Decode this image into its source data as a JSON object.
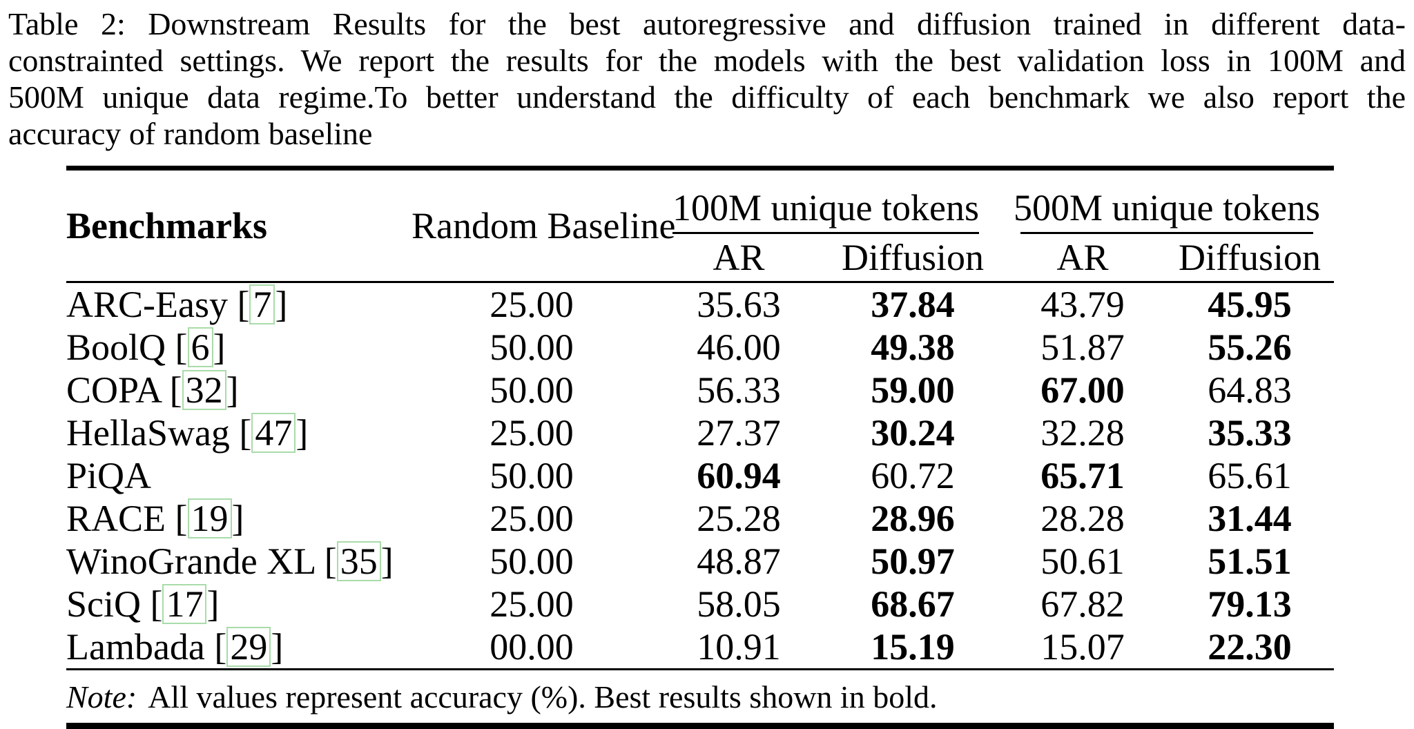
{
  "caption": {
    "lines": [
      "Table 2: Downstream Results for the best autoregressive and diffusion trained in different data-",
      "constrainted settings. We report the results for the models with the best validation loss in 100M and",
      "500M unique data regime.To better understand the difficulty of each benchmark we also report the",
      "accuracy of random baseline"
    ]
  },
  "table": {
    "col_headers": {
      "benchmarks": "Benchmarks",
      "random_baseline": "Random Baseline",
      "group_100m": "100M unique tokens",
      "group_500m": "500M unique tokens",
      "ar": "AR",
      "diffusion": "Diffusion"
    },
    "rows": [
      {
        "name": "ARC-Easy",
        "cite": "7",
        "random": "25.00",
        "values": [
          {
            "v": "35.63",
            "b": false
          },
          {
            "v": "37.84",
            "b": true
          },
          {
            "v": "43.79",
            "b": false
          },
          {
            "v": "45.95",
            "b": true
          }
        ]
      },
      {
        "name": "BoolQ",
        "cite": "6",
        "random": "50.00",
        "values": [
          {
            "v": "46.00",
            "b": false
          },
          {
            "v": "49.38",
            "b": true
          },
          {
            "v": "51.87",
            "b": false
          },
          {
            "v": "55.26",
            "b": true
          }
        ]
      },
      {
        "name": "COPA",
        "cite": "32",
        "random": "50.00",
        "values": [
          {
            "v": "56.33",
            "b": false
          },
          {
            "v": "59.00",
            "b": true
          },
          {
            "v": "67.00",
            "b": true
          },
          {
            "v": "64.83",
            "b": false
          }
        ]
      },
      {
        "name": "HellaSwag",
        "cite": "47",
        "random": "25.00",
        "values": [
          {
            "v": "27.37",
            "b": false
          },
          {
            "v": "30.24",
            "b": true
          },
          {
            "v": "32.28",
            "b": false
          },
          {
            "v": "35.33",
            "b": true
          }
        ]
      },
      {
        "name": "PiQA",
        "cite": null,
        "random": "50.00",
        "values": [
          {
            "v": "60.94",
            "b": true
          },
          {
            "v": "60.72",
            "b": false
          },
          {
            "v": "65.71",
            "b": true
          },
          {
            "v": "65.61",
            "b": false
          }
        ]
      },
      {
        "name": "RACE",
        "cite": "19",
        "random": "25.00",
        "values": [
          {
            "v": "25.28",
            "b": false
          },
          {
            "v": "28.96",
            "b": true
          },
          {
            "v": "28.28",
            "b": false
          },
          {
            "v": "31.44",
            "b": true
          }
        ]
      },
      {
        "name": "WinoGrande XL",
        "cite": "35",
        "random": "50.00",
        "values": [
          {
            "v": "48.87",
            "b": false
          },
          {
            "v": "50.97",
            "b": true
          },
          {
            "v": "50.61",
            "b": false
          },
          {
            "v": "51.51",
            "b": true
          }
        ]
      },
      {
        "name": "SciQ",
        "cite": "17",
        "random": "25.00",
        "values": [
          {
            "v": "58.05",
            "b": false
          },
          {
            "v": "68.67",
            "b": true
          },
          {
            "v": "67.82",
            "b": false
          },
          {
            "v": "79.13",
            "b": true
          }
        ]
      },
      {
        "name": "Lambada",
        "cite": "29",
        "random": "00.00",
        "values": [
          {
            "v": "10.91",
            "b": false
          },
          {
            "v": "15.19",
            "b": true
          },
          {
            "v": "15.07",
            "b": false
          },
          {
            "v": "22.30",
            "b": true
          }
        ]
      }
    ],
    "note_label": "Note:",
    "note_text": "All values represent accuracy (%). Best results shown in bold."
  },
  "colors": {
    "background": "#ffffff",
    "text": "#000000",
    "citation_box": "#a9dba9"
  }
}
